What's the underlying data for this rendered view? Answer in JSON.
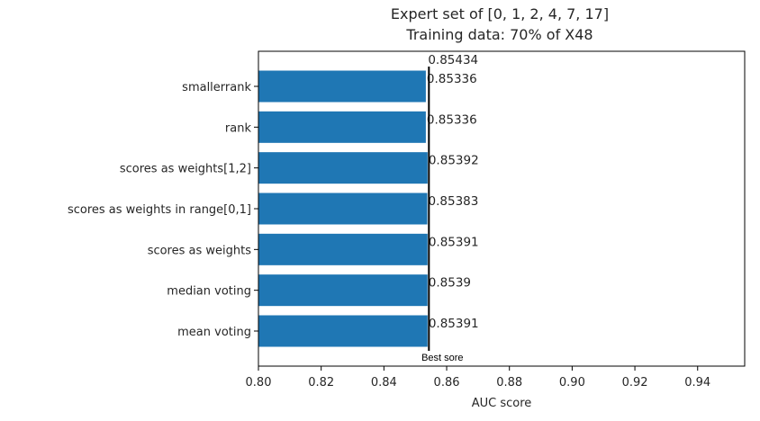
{
  "chart_data": {
    "type": "bar",
    "orientation": "horizontal",
    "title": "Expert set of [0, 1, 2, 4, 7, 17]",
    "subtitle": "Training data: 70% of X48",
    "xlabel": "AUC score",
    "ylabel": "",
    "xlim": [
      0.8,
      0.955
    ],
    "x_ticks": [
      "0.80",
      "0.82",
      "0.84",
      "0.86",
      "0.88",
      "0.90",
      "0.92",
      "0.94"
    ],
    "categories": [
      "smallerrank",
      "rank",
      "scores as weights[1,2]",
      "scores as weights in range[0,1]",
      "scores as weights",
      "median voting",
      "mean voting"
    ],
    "values": [
      0.85336,
      0.85336,
      0.85392,
      0.85383,
      0.85391,
      0.8539,
      0.85391
    ],
    "value_labels": [
      "0.85336",
      "0.85336",
      "0.85392",
      "0.85383",
      "0.85391",
      "0.8539",
      "0.85391"
    ],
    "bar_color": "#1f77b4",
    "reference_line": {
      "value": 0.85434,
      "value_label": "0.85434",
      "label": "Best sore",
      "color": "#000000"
    },
    "grid": false,
    "legend": "none"
  }
}
